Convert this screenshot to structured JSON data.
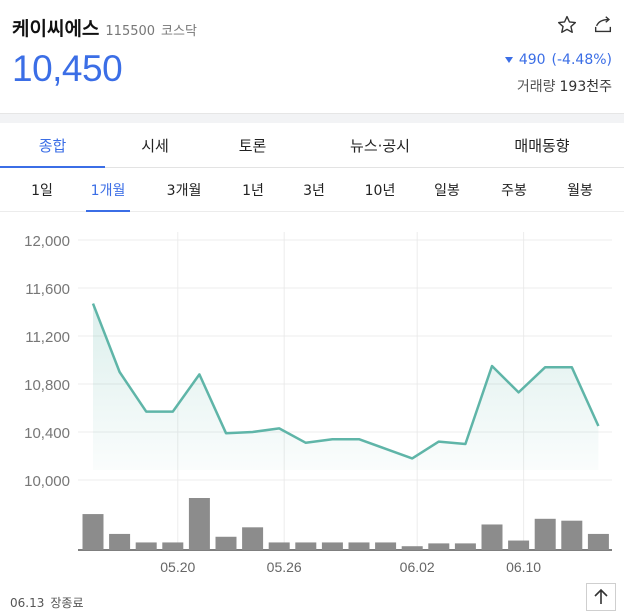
{
  "stock": {
    "name": "케이씨에스",
    "code": "115500",
    "market": "코스닥",
    "price": "10,450",
    "change": "490",
    "change_rate": "(-4.48%)",
    "volume_label": "거래량",
    "volume": "193천주"
  },
  "main_tabs": [
    "종합",
    "시세",
    "토론",
    "뉴스·공시",
    "매매동향"
  ],
  "period_tabs": [
    "1일",
    "1개월",
    "3개월",
    "1년",
    "3년",
    "10년",
    "일봉",
    "주봉",
    "월봉"
  ],
  "footer": {
    "date": "06.13",
    "status": "장종료"
  },
  "colors": {
    "accent": "#3b6ee6",
    "line": "#5fb5a8",
    "bar": "#8c8c8c"
  },
  "icons": {
    "favorite": "star-icon",
    "share": "share-icon",
    "scroll_top": "arrow-up-icon"
  },
  "chart_data": {
    "type": "line",
    "yticks": [
      "12,000",
      "11,600",
      "11,200",
      "10,800",
      "10,400",
      "10,000"
    ],
    "ylim": [
      10000,
      12000
    ],
    "xticks": [
      {
        "label": "05.20",
        "index": 3
      },
      {
        "label": "05.26",
        "index": 7
      },
      {
        "label": "06.02",
        "index": 12
      },
      {
        "label": "06.10",
        "index": 16
      }
    ],
    "grid": true,
    "series": [
      {
        "values": [
          11470,
          10900,
          10570,
          10570,
          10880,
          10390,
          10400,
          10430,
          10310,
          10340,
          10340,
          10260,
          10180,
          10320,
          10300,
          10950,
          10730,
          10940,
          10940,
          10450
        ]
      }
    ],
    "volume": [
      38,
      17,
      8,
      8,
      55,
      14,
      24,
      8,
      8,
      8,
      8,
      8,
      4,
      7,
      7,
      27,
      10,
      33,
      31,
      17
    ]
  }
}
